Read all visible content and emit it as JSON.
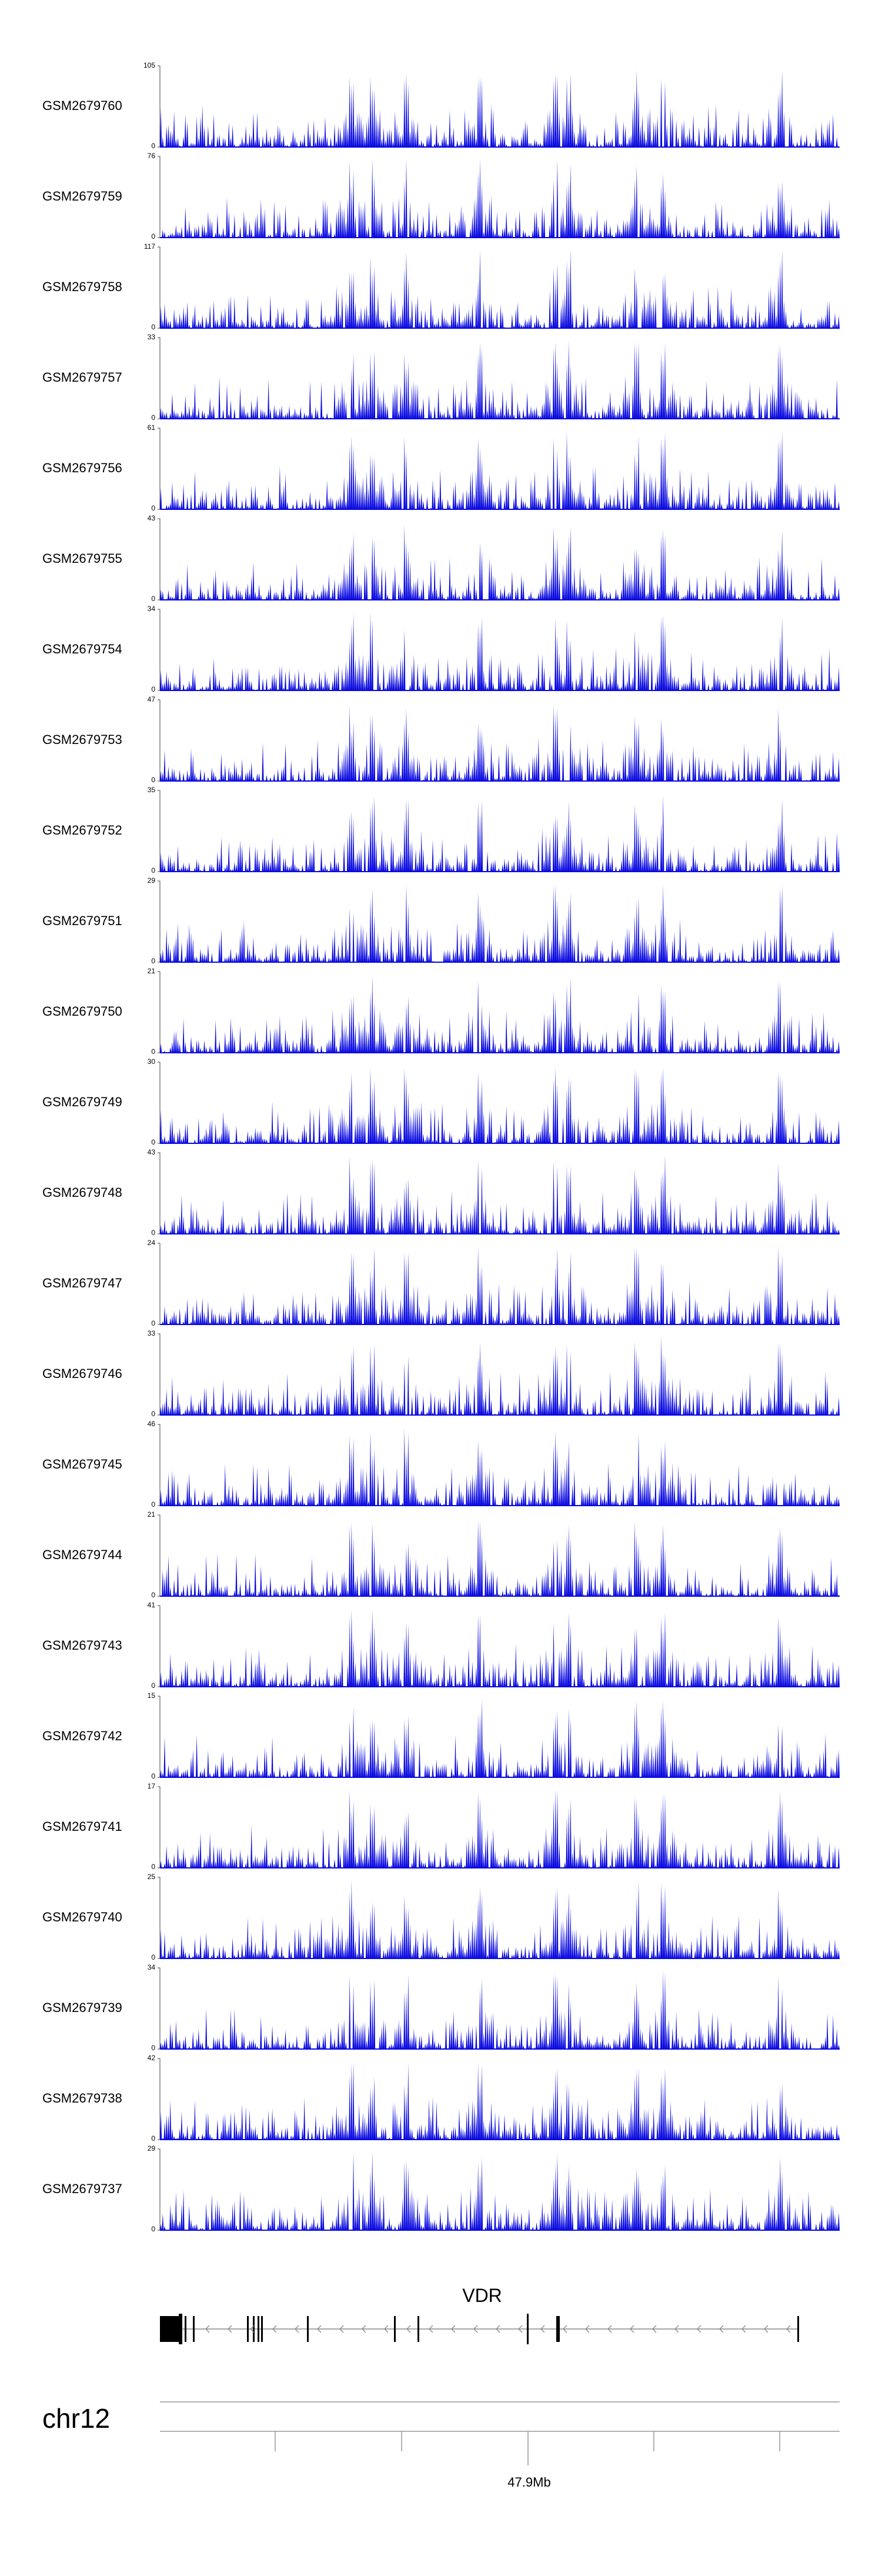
{
  "chart_data": {
    "type": "area",
    "track_color": "#0a0ae0",
    "tracks": [
      {
        "name": "GSM2679760",
        "ymax": "105",
        "ymin": "0",
        "max": 105,
        "seed": 11
      },
      {
        "name": "GSM2679759",
        "ymax": "76",
        "ymin": "0",
        "max": 76,
        "seed": 12
      },
      {
        "name": "GSM2679758",
        "ymax": "117",
        "ymin": "0",
        "max": 117,
        "seed": 13
      },
      {
        "name": "GSM2679757",
        "ymax": "33",
        "ymin": "0",
        "max": 33,
        "seed": 14
      },
      {
        "name": "GSM2679756",
        "ymax": "61",
        "ymin": "0",
        "max": 61,
        "seed": 15
      },
      {
        "name": "GSM2679755",
        "ymax": "43",
        "ymin": "0",
        "max": 43,
        "seed": 16
      },
      {
        "name": "GSM2679754",
        "ymax": "34",
        "ymin": "0",
        "max": 34,
        "seed": 17
      },
      {
        "name": "GSM2679753",
        "ymax": "47",
        "ymin": "0",
        "max": 47,
        "seed": 18
      },
      {
        "name": "GSM2679752",
        "ymax": "35",
        "ymin": "0",
        "max": 35,
        "seed": 19
      },
      {
        "name": "GSM2679751",
        "ymax": "29",
        "ymin": "0",
        "max": 29,
        "seed": 20
      },
      {
        "name": "GSM2679750",
        "ymax": "21",
        "ymin": "0",
        "max": 21,
        "seed": 21
      },
      {
        "name": "GSM2679749",
        "ymax": "30",
        "ymin": "0",
        "max": 30,
        "seed": 22
      },
      {
        "name": "GSM2679748",
        "ymax": "43",
        "ymin": "0",
        "max": 43,
        "seed": 23
      },
      {
        "name": "GSM2679747",
        "ymax": "24",
        "ymin": "0",
        "max": 24,
        "seed": 24
      },
      {
        "name": "GSM2679746",
        "ymax": "33",
        "ymin": "0",
        "max": 33,
        "seed": 25
      },
      {
        "name": "GSM2679745",
        "ymax": "46",
        "ymin": "0",
        "max": 46,
        "seed": 26
      },
      {
        "name": "GSM2679744",
        "ymax": "21",
        "ymin": "0",
        "max": 21,
        "seed": 27
      },
      {
        "name": "GSM2679743",
        "ymax": "41",
        "ymin": "0",
        "max": 41,
        "seed": 28
      },
      {
        "name": "GSM2679742",
        "ymax": "15",
        "ymin": "0",
        "max": 15,
        "seed": 29
      },
      {
        "name": "GSM2679741",
        "ymax": "17",
        "ymin": "0",
        "max": 17,
        "seed": 30
      },
      {
        "name": "GSM2679740",
        "ymax": "25",
        "ymin": "0",
        "max": 25,
        "seed": 31
      },
      {
        "name": "GSM2679739",
        "ymax": "34",
        "ymin": "0",
        "max": 34,
        "seed": 32
      },
      {
        "name": "GSM2679738",
        "ymax": "42",
        "ymin": "0",
        "max": 42,
        "seed": 33
      },
      {
        "name": "GSM2679737",
        "ymax": "29",
        "ymin": "0",
        "max": 29,
        "seed": 34
      }
    ],
    "gene": {
      "name": "VDR",
      "strand": "-"
    },
    "chromosome": "chr12",
    "axis_tick_labels": [
      "47.9Mb"
    ]
  }
}
